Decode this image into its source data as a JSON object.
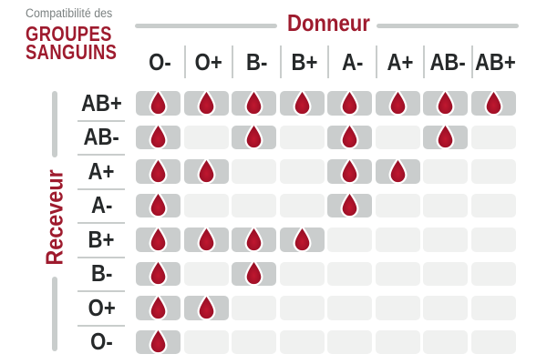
{
  "header": {
    "pretitle": "Compatibilité des",
    "title_line1": "GROUPES",
    "title_line2": "SANGUINS",
    "donor_axis": "Donneur",
    "receiver_axis": "Receveur"
  },
  "chart_data": {
    "type": "heatmap",
    "title": "Compatibilité des GROUPES SANGUINS",
    "x_axis_label": "Donneur",
    "y_axis_label": "Receveur",
    "columns": [
      "O-",
      "O+",
      "B-",
      "B+",
      "A-",
      "A+",
      "AB-",
      "AB+"
    ],
    "rows": [
      "AB+",
      "AB-",
      "A+",
      "A-",
      "B+",
      "B-",
      "O+",
      "O-"
    ],
    "values": [
      [
        1,
        1,
        1,
        1,
        1,
        1,
        1,
        1
      ],
      [
        1,
        0,
        1,
        0,
        1,
        0,
        1,
        0
      ],
      [
        1,
        1,
        0,
        0,
        1,
        1,
        0,
        0
      ],
      [
        1,
        0,
        0,
        0,
        1,
        0,
        0,
        0
      ],
      [
        1,
        1,
        1,
        1,
        0,
        0,
        0,
        0
      ],
      [
        1,
        0,
        1,
        0,
        0,
        0,
        0,
        0
      ],
      [
        1,
        1,
        0,
        0,
        0,
        0,
        0,
        0
      ],
      [
        1,
        0,
        0,
        0,
        0,
        0,
        0,
        0
      ]
    ],
    "value_meaning": "1 = compatible (blood drop icon shown on dark cell), 0 = not compatible (empty light cell)",
    "legend_position": "none",
    "grid": "off"
  },
  "colors": {
    "accent_red": "#9E1B2E",
    "drop_red": "#A8112B",
    "text_dark": "#26292A",
    "line_gray": "#C9CDCC",
    "cell_filled": "#CACDCD",
    "cell_empty": "#F0F1F0",
    "pretitle_gray": "#7C8282"
  }
}
